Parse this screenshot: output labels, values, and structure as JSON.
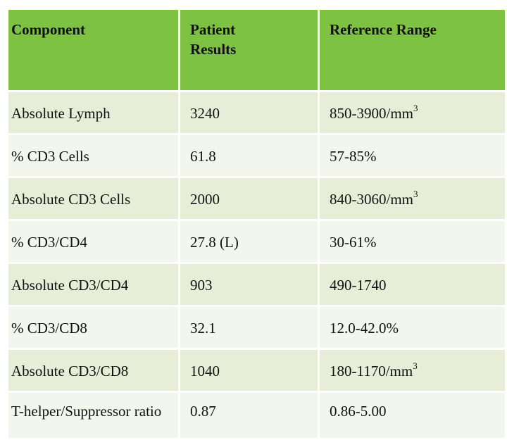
{
  "table": {
    "headers": {
      "component": "Component",
      "patient_results_line1": "Patient",
      "patient_results_line2": "Results",
      "reference_range": "Reference Range"
    },
    "rows": [
      {
        "component": "Absolute Lymph",
        "result": "3240",
        "range": "850-3900/mm",
        "range_sup": "3"
      },
      {
        "component": "% CD3 Cells",
        "result": "61.8",
        "range": "57-85%",
        "range_sup": ""
      },
      {
        "component": "Absolute CD3 Cells",
        "result": "2000",
        "range": "840-3060/mm",
        "range_sup": "3"
      },
      {
        "component": "% CD3/CD4",
        "result": "27.8 (L)",
        "range": "30-61%",
        "range_sup": ""
      },
      {
        "component": "Absolute CD3/CD4",
        "result": "903",
        "range": "490-1740",
        "range_sup": ""
      },
      {
        "component": "% CD3/CD8",
        "result": "32.1",
        "range": "12.0-42.0%",
        "range_sup": ""
      },
      {
        "component": "Absolute CD3/CD8",
        "result": "1040",
        "range": "180-1170/mm",
        "range_sup": "3"
      },
      {
        "component": "T-helper/Suppressor ratio",
        "result": "0.87",
        "range": "0.86-5.00",
        "range_sup": ""
      }
    ]
  },
  "colors": {
    "header_bg": "#7dc242",
    "row_bg_dark": "#e6eed8",
    "row_bg_light": "#f2f6ec"
  }
}
